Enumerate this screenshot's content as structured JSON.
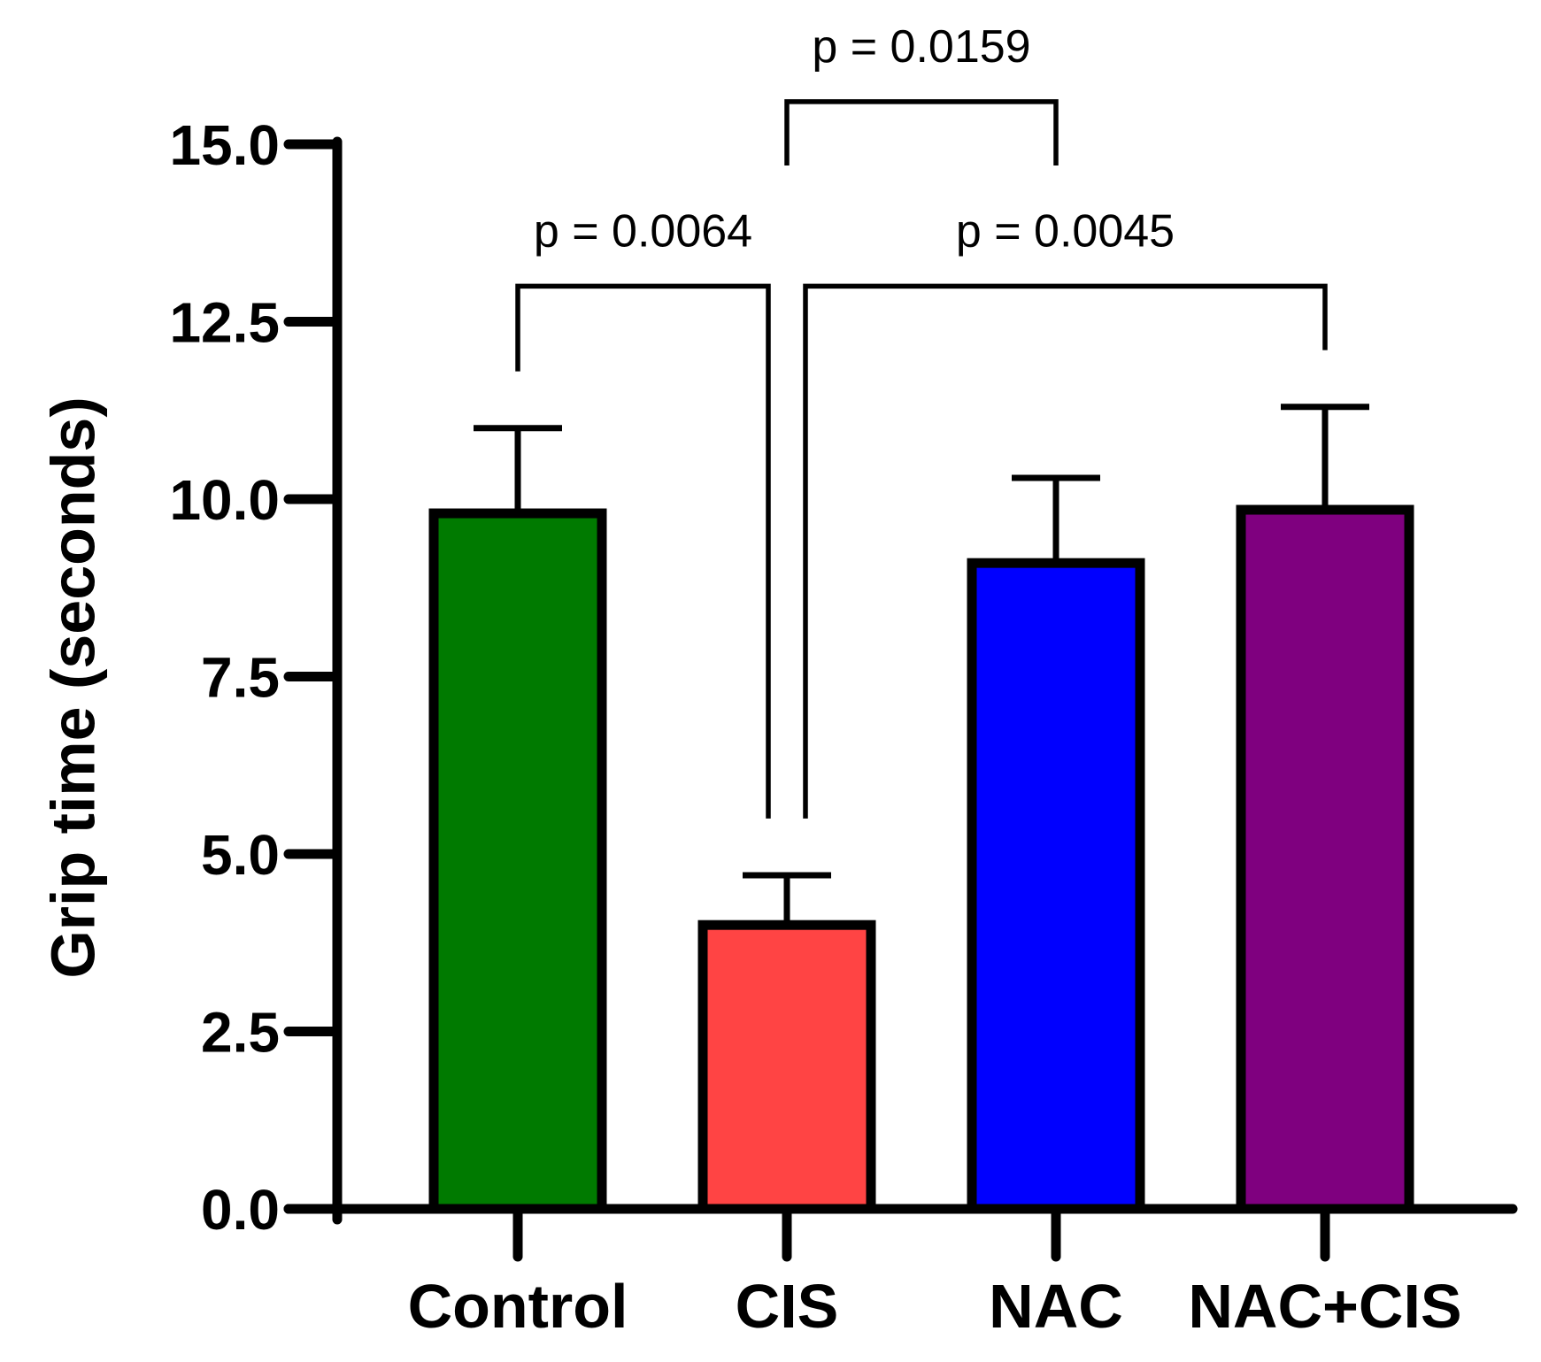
{
  "chart_data": {
    "type": "bar",
    "title": "",
    "xlabel": "",
    "ylabel": "Grip time (seconds)",
    "ylim": [
      0,
      15
    ],
    "yticks": [
      "0.0",
      "2.5",
      "5.0",
      "7.5",
      "10.0",
      "12.5",
      "15.0"
    ],
    "categories": [
      "Control",
      "CIS",
      "NAC",
      "NAC+CIS"
    ],
    "values": [
      9.8,
      4.0,
      9.1,
      9.85
    ],
    "error_upper": [
      11.0,
      4.7,
      10.3,
      11.3
    ],
    "colors": [
      "#007a00",
      "#ff4444",
      "#0000ff",
      "#7f007f"
    ],
    "comparisons": [
      {
        "from": 0,
        "to": 1,
        "label": "p = 0.0064",
        "bracket_y": 13.0,
        "left_end": 11.8,
        "right_end": 5.5
      },
      {
        "from": 1,
        "to": 3,
        "label": "p = 0.0045",
        "bracket_y": 13.0,
        "left_end": 5.5,
        "right_end": 12.1
      },
      {
        "from": 1,
        "to": 2,
        "label": "p = 0.0159",
        "bracket_y": 15.6,
        "left_end": 14.7,
        "right_end": 14.7
      }
    ]
  }
}
